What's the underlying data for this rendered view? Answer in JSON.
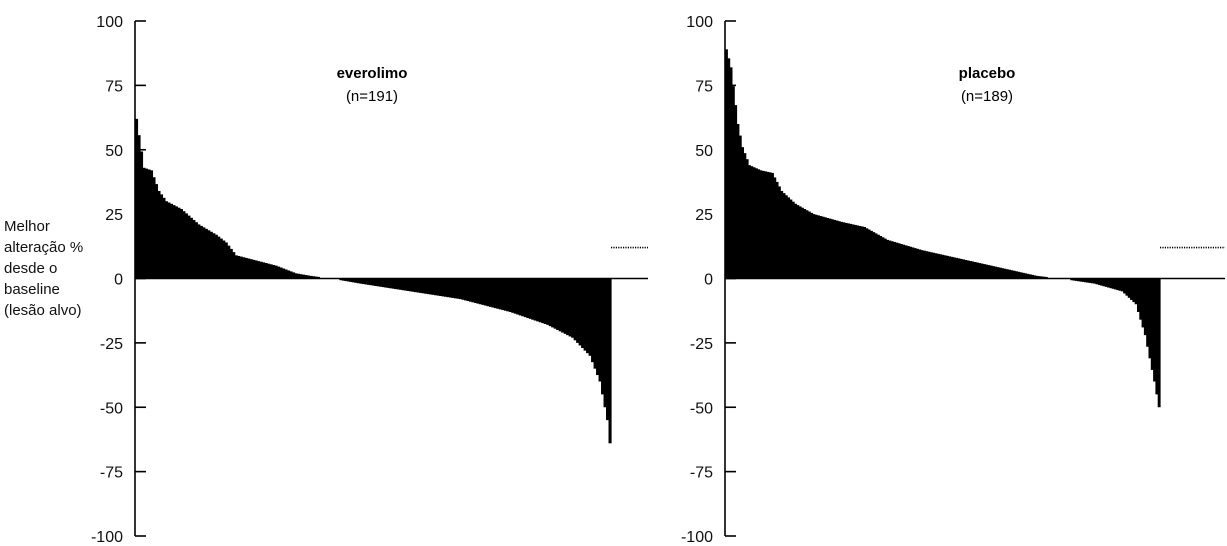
{
  "y_axis_label": [
    "Melhor",
    "alteração %",
    "desde o",
    "baseline",
    "(lesão alvo)"
  ],
  "chart_data": [
    {
      "type": "bar",
      "title": "everolimo",
      "subtitle": "(n=191)",
      "ylabel": "Melhor alteração % desde o baseline (lesão alvo)",
      "ylim": [
        -100,
        100
      ],
      "yticks": [
        100,
        75,
        50,
        25,
        0,
        -25,
        -50,
        -75,
        -100
      ],
      "n": 191,
      "bar_color": "#000000",
      "sorted_descending": true,
      "note": "",
      "keypoints_index_value": [
        [
          0,
          62
        ],
        [
          3,
          43
        ],
        [
          6,
          42
        ],
        [
          9,
          34
        ],
        [
          12,
          30
        ],
        [
          18,
          27
        ],
        [
          25,
          21
        ],
        [
          32,
          17
        ],
        [
          36,
          14
        ],
        [
          40,
          9
        ],
        [
          48,
          7
        ],
        [
          56,
          5
        ],
        [
          64,
          2
        ],
        [
          70,
          1
        ],
        [
          78,
          0
        ],
        [
          90,
          -2
        ],
        [
          110,
          -5
        ],
        [
          130,
          -8
        ],
        [
          150,
          -13
        ],
        [
          165,
          -18
        ],
        [
          175,
          -23
        ],
        [
          182,
          -30
        ],
        [
          186,
          -40
        ],
        [
          189,
          -55
        ],
        [
          190,
          -64
        ]
      ],
      "missing_marker": {
        "value": 12,
        "style": "dotted"
      }
    },
    {
      "type": "bar",
      "title": "placebo",
      "subtitle": "(n=189)",
      "ylim": [
        -100,
        100
      ],
      "yticks": [
        100,
        75,
        50,
        25,
        0,
        -25,
        -50,
        -75,
        -100
      ],
      "n": 189,
      "bar_color": "#000000",
      "sorted_descending": true,
      "keypoints_index_value": [
        [
          0,
          89
        ],
        [
          2,
          82
        ],
        [
          5,
          60
        ],
        [
          7,
          51
        ],
        [
          10,
          44
        ],
        [
          15,
          42
        ],
        [
          20,
          41
        ],
        [
          24,
          34
        ],
        [
          30,
          29
        ],
        [
          38,
          25
        ],
        [
          50,
          22
        ],
        [
          60,
          20
        ],
        [
          70,
          15
        ],
        [
          85,
          11
        ],
        [
          100,
          8
        ],
        [
          115,
          5
        ],
        [
          125,
          3
        ],
        [
          135,
          1
        ],
        [
          145,
          0
        ],
        [
          160,
          -2
        ],
        [
          172,
          -5
        ],
        [
          178,
          -10
        ],
        [
          182,
          -22
        ],
        [
          186,
          -40
        ],
        [
          188,
          -50
        ]
      ],
      "missing_marker": {
        "value": 12,
        "style": "dotted"
      }
    }
  ]
}
